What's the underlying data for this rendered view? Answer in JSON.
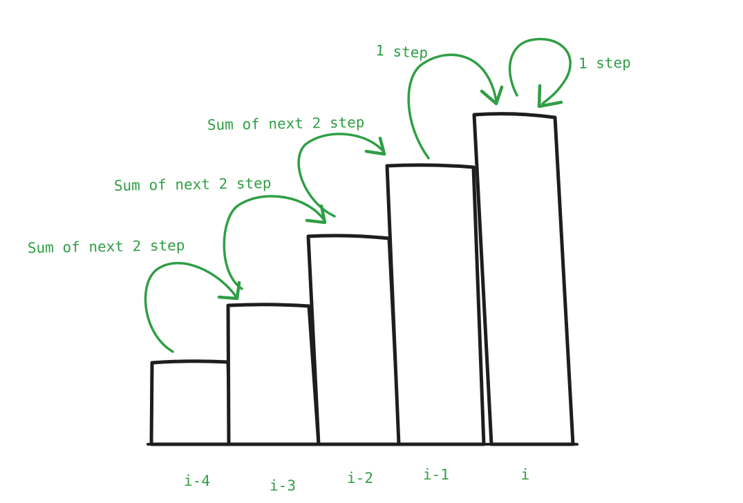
{
  "diagram": {
    "colors": {
      "outline": "#1e1e1e",
      "annotation": "#2f9e44",
      "background": "#ffffff"
    },
    "steps": [
      {
        "label": "i-4"
      },
      {
        "label": "i-3"
      },
      {
        "label": "i-2"
      },
      {
        "label": "i-1"
      },
      {
        "label": "i"
      }
    ],
    "annotations": [
      {
        "text": "Sum of next 2 step"
      },
      {
        "text": "Sum of next 2 step"
      },
      {
        "text": "Sum of next 2 step"
      },
      {
        "text": "1 step"
      },
      {
        "text": "1 step"
      }
    ]
  }
}
